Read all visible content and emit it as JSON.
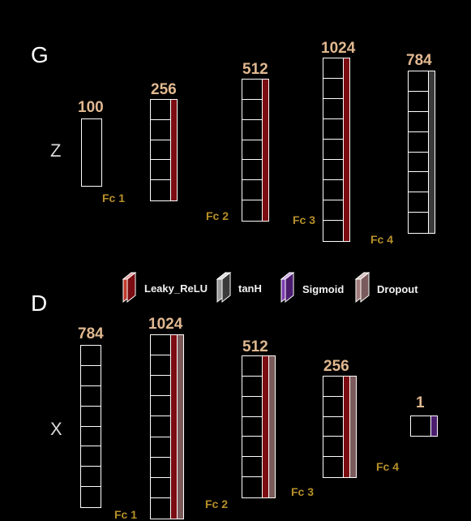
{
  "colors": {
    "leaky_relu": "#7a0c12",
    "tanh": "#3a3a3a",
    "sigmoid": "#4b1c6e",
    "dropout": "#7a5a5a"
  },
  "legend": [
    {
      "key": "leaky_relu",
      "label": "Leaky_ReLU",
      "icon": "leaky-relu-swatch-icon"
    },
    {
      "key": "tanh",
      "label": "tanH",
      "icon": "tanh-swatch-icon"
    },
    {
      "key": "sigmoid",
      "label": "Sigmoid",
      "icon": "sigmoid-swatch-icon"
    },
    {
      "key": "dropout",
      "label": "Dropout",
      "icon": "dropout-swatch-icon"
    }
  ],
  "generator": {
    "title": "G",
    "input_label": "Z",
    "layers": [
      {
        "size": "100",
        "activations": []
      },
      {
        "size": "256",
        "activations": [
          "leaky_relu"
        ]
      },
      {
        "size": "512",
        "activations": [
          "leaky_relu"
        ]
      },
      {
        "size": "1024",
        "activations": [
          "leaky_relu"
        ]
      },
      {
        "size": "784",
        "activations": [
          "tanh"
        ]
      }
    ],
    "fc_labels": [
      "Fc 1",
      "Fc 2",
      "Fc 3",
      "Fc 4"
    ]
  },
  "discriminator": {
    "title": "D",
    "input_label": "X",
    "layers": [
      {
        "size": "784",
        "activations": []
      },
      {
        "size": "1024",
        "activations": [
          "leaky_relu",
          "dropout"
        ]
      },
      {
        "size": "512",
        "activations": [
          "leaky_relu",
          "dropout"
        ]
      },
      {
        "size": "256",
        "activations": [
          "leaky_relu",
          "dropout"
        ]
      },
      {
        "size": "1",
        "activations": [
          "sigmoid"
        ]
      }
    ],
    "fc_labels": [
      "Fc 1",
      "Fc 2",
      "Fc 3",
      "Fc 4"
    ]
  }
}
